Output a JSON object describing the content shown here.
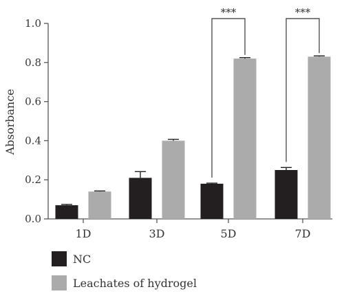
{
  "chart_data": {
    "type": "bar",
    "title": "",
    "xlabel": "",
    "ylabel": "Absorbance",
    "ylim": [
      0,
      1.0
    ],
    "yticks": [
      "0.0",
      "0.2",
      "0.4",
      "0.6",
      "0.8",
      "1.0"
    ],
    "categories": [
      "1D",
      "3D",
      "5D",
      "7D"
    ],
    "series": [
      {
        "name": "NC",
        "color": "#231f20",
        "values": [
          0.07,
          0.21,
          0.18,
          0.25
        ],
        "errors": [
          0.004,
          0.032,
          0.003,
          0.013
        ]
      },
      {
        "name": "Leachates of hydrogel",
        "color": "#ababab",
        "values": [
          0.14,
          0.4,
          0.82,
          0.83
        ],
        "errors": [
          0.003,
          0.007,
          0.005,
          0.004
        ]
      }
    ],
    "significance": [
      {
        "category": "5D",
        "label": "***"
      },
      {
        "category": "7D",
        "label": "***"
      }
    ],
    "grid": false,
    "legend_position": "bottom-left"
  }
}
